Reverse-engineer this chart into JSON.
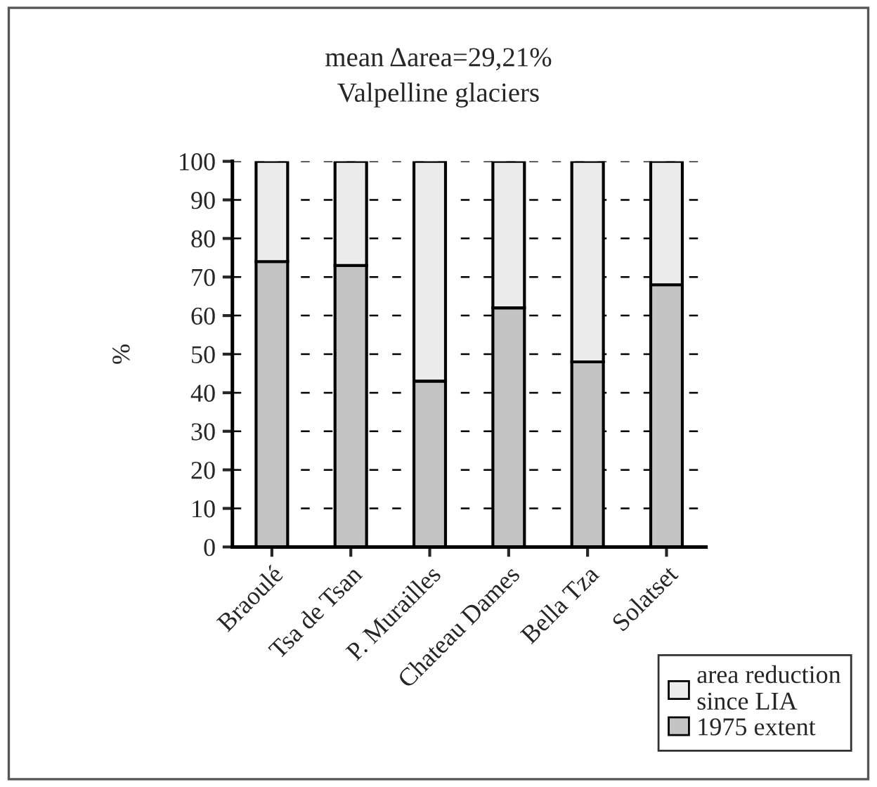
{
  "chart_data": {
    "type": "bar",
    "title": "mean Δarea=29,21%",
    "subtitle": "Valpelline glaciers",
    "ylabel": "%",
    "categories": [
      "Braoulé",
      "Tsa de Tsan",
      "P. Murailles",
      "Chateau Dames",
      "Bella Tza",
      "Solatset"
    ],
    "stacked": true,
    "series": [
      {
        "name": "1975 extent",
        "color": "#c4c4c4",
        "values": [
          74,
          73,
          43,
          62,
          48,
          68
        ]
      },
      {
        "name": "area reduction since LIA",
        "color": "#ececec",
        "values": [
          26,
          27,
          57,
          38,
          52,
          32
        ]
      }
    ],
    "ylim": [
      0,
      100
    ],
    "yticks": [
      0,
      10,
      20,
      30,
      40,
      50,
      60,
      70,
      80,
      90,
      100
    ],
    "grid": "y",
    "legend": "bottom right"
  }
}
